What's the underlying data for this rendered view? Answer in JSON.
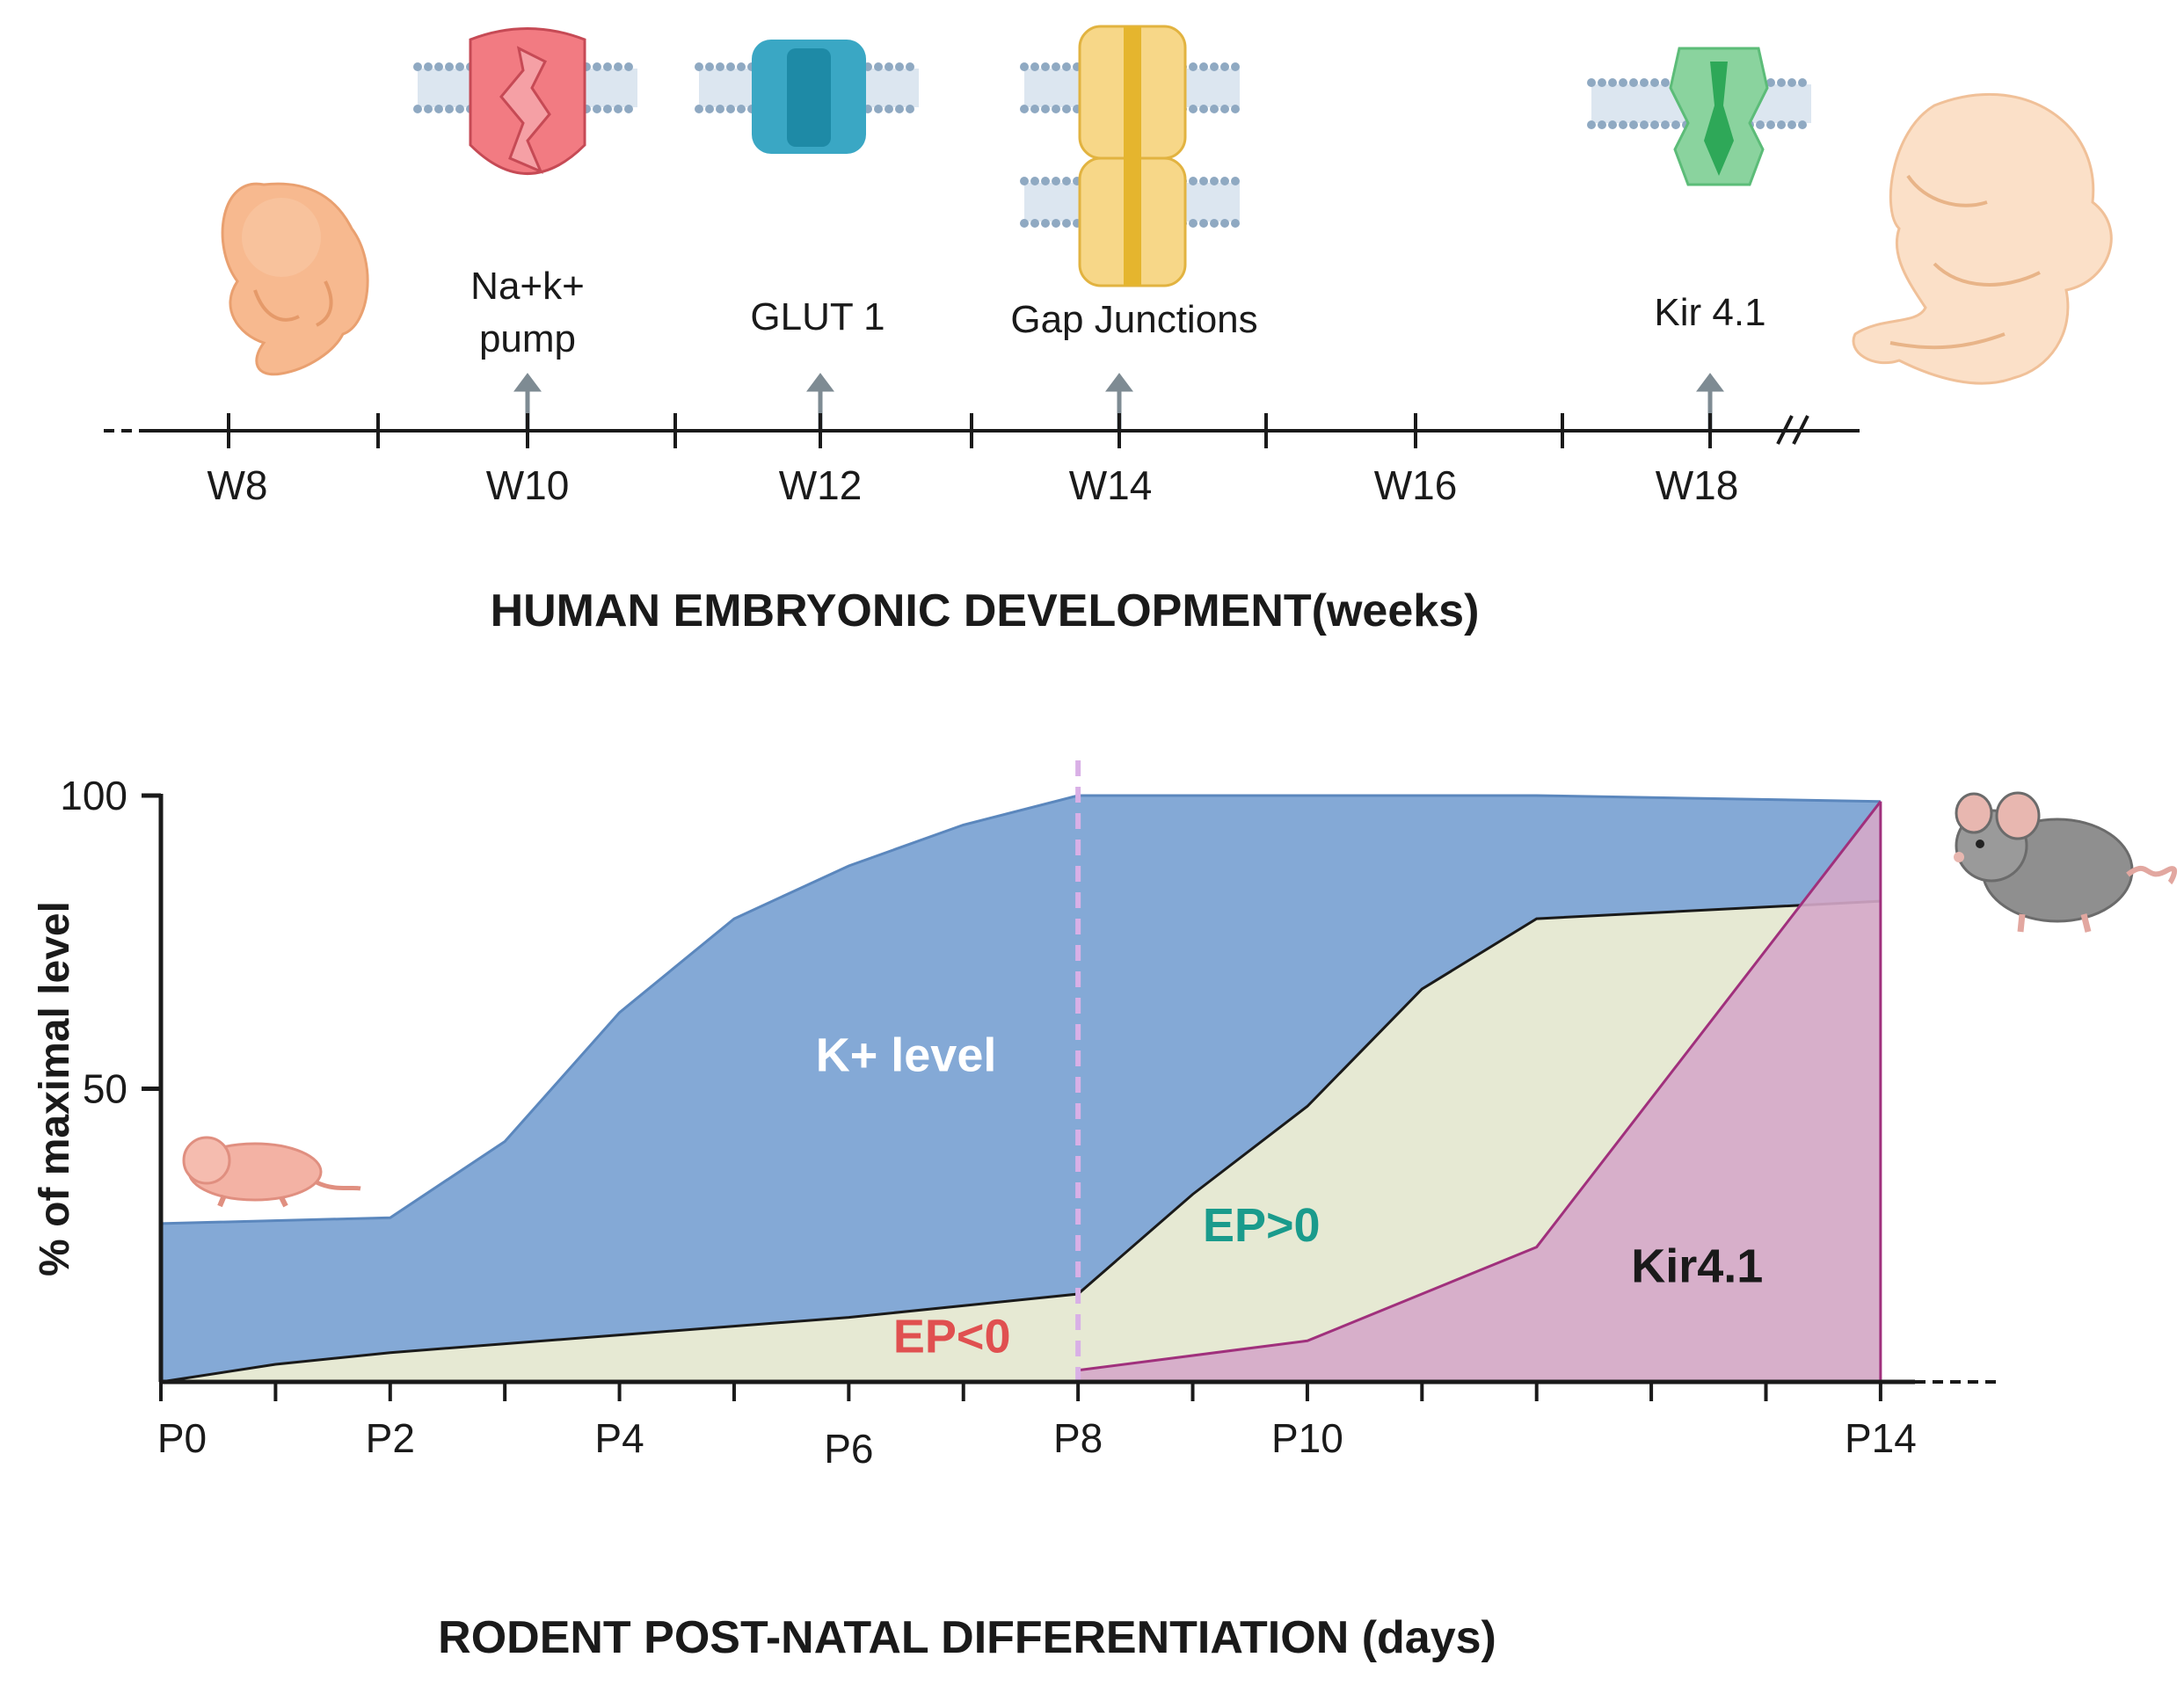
{
  "timeline": {
    "title": "HUMAN EMBRYONIC DEVELOPMENT(weeks)",
    "week_labels": [
      "W8",
      "W10",
      "W12",
      "W14",
      "W16",
      "W18"
    ],
    "milestones": [
      {
        "label_line1": "Na+k+",
        "label_line2": "pump",
        "week": "W10",
        "icon": "sodium-potassium-pump-icon"
      },
      {
        "label_line1": "GLUT 1",
        "label_line2": "",
        "week": "W12",
        "icon": "glut1-transporter-icon"
      },
      {
        "label_line1": "Gap Junctions",
        "label_line2": "",
        "week": "W14",
        "icon": "gap-junction-icon"
      },
      {
        "label_line1": "Kir 4.1",
        "label_line2": "",
        "week": "W18",
        "icon": "kir41-channel-icon"
      }
    ],
    "colors": {
      "pump": "#f27b82",
      "glut": "#3aa7c4",
      "gap": "#f2c95a",
      "kir": "#66c48a",
      "embryo": "#f7b98f"
    }
  },
  "chart_data": {
    "type": "area",
    "title": "RODENT POST-NATAL DIFFERENTIATION (days)",
    "xlabel": "RODENT POST-NATAL DIFFERENTIATION (days)",
    "ylabel": "% of maximal level",
    "x_tick_labels": [
      "P0",
      "P2",
      "P4",
      "P6",
      "P8",
      "P10",
      "P14"
    ],
    "x_tick_positions": [
      0,
      2,
      4,
      6,
      8,
      10,
      15
    ],
    "xlim": [
      0,
      15.3
    ],
    "ylim": [
      0,
      100
    ],
    "y_ticks": [
      50,
      100
    ],
    "divider_x": 8,
    "series": [
      {
        "name": "K+ level",
        "color": "#84a9d6",
        "x": [
          0,
          2,
          3,
          4,
          5,
          6,
          7,
          8,
          10,
          12,
          15
        ],
        "y": [
          27,
          28,
          41,
          63,
          79,
          88,
          95,
          100,
          100,
          100,
          99
        ]
      },
      {
        "name": "EP",
        "color": "#e6e9d3",
        "x": [
          0,
          1,
          2,
          4,
          6,
          8,
          9,
          10,
          11,
          12,
          15
        ],
        "y": [
          0,
          3,
          5,
          8,
          11,
          15,
          32,
          47,
          67,
          79,
          82
        ]
      },
      {
        "name": "Kir4.1",
        "color": "#d5a9c9",
        "x": [
          8,
          10,
          12,
          15
        ],
        "y": [
          2,
          7,
          23,
          99
        ]
      }
    ],
    "annotations": [
      {
        "text": "K+ level",
        "x": 6.5,
        "y": 53,
        "color": "#ffffff"
      },
      {
        "text": "EP>0",
        "x": 9.6,
        "y": 24,
        "color": "#1a9b8c"
      },
      {
        "text": "EP<0",
        "x": 6.9,
        "y": 5,
        "color": "#e05050"
      },
      {
        "text": "Kir4.1",
        "x": 13.4,
        "y": 17,
        "color": "#1a1a1a"
      }
    ]
  }
}
